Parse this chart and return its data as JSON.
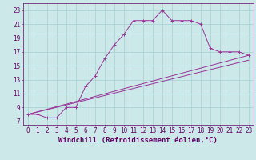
{
  "xlabel": "Windchill (Refroidissement éolien,°C)",
  "background_color": "#cce8e8",
  "line_color": "#993399",
  "xlim": [
    -0.5,
    23.5
  ],
  "ylim": [
    6.5,
    24.0
  ],
  "xticks": [
    0,
    1,
    2,
    3,
    4,
    5,
    6,
    7,
    8,
    9,
    10,
    11,
    12,
    13,
    14,
    15,
    16,
    17,
    18,
    19,
    20,
    21,
    22,
    23
  ],
  "yticks": [
    7,
    9,
    11,
    13,
    15,
    17,
    19,
    21,
    23
  ],
  "grid_color": "#aad4d4",
  "curve1_x": [
    0,
    1,
    2,
    3,
    4,
    5,
    6,
    7,
    8,
    9,
    10,
    11,
    12,
    13,
    14,
    15,
    16,
    17,
    18,
    19,
    20,
    21,
    22,
    23
  ],
  "curve1_y": [
    8.0,
    8.0,
    7.5,
    7.5,
    9.0,
    9.0,
    12.0,
    13.5,
    16.0,
    18.0,
    19.5,
    21.5,
    21.5,
    21.5,
    23.0,
    21.5,
    21.5,
    21.5,
    21.0,
    17.5,
    17.0,
    17.0,
    17.0,
    16.5
  ],
  "curve2_x": [
    0,
    23
  ],
  "curve2_y": [
    8.0,
    16.5
  ],
  "curve3_x": [
    0,
    23
  ],
  "curve3_y": [
    8.0,
    15.8
  ],
  "xlabel_fontsize": 6.5,
  "tick_fontsize": 5.5
}
